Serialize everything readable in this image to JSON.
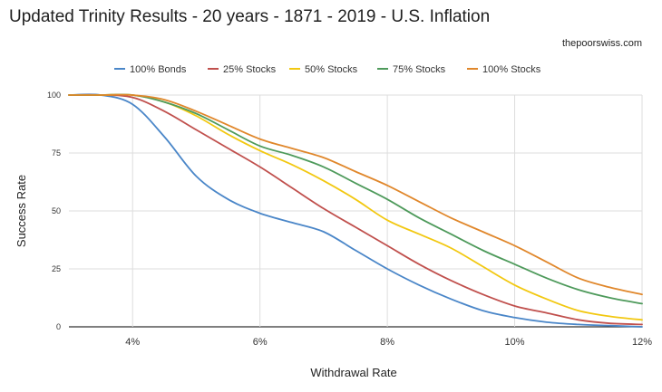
{
  "chart_data": {
    "type": "line",
    "title": "Updated Trinity Results - 20 years - 1871 - 2019 - U.S. Inflation",
    "subtitle": "thepoorswiss.com",
    "xlabel": "Withdrawal Rate",
    "ylabel": "Success Rate",
    "x": [
      3.0,
      3.5,
      4.0,
      4.5,
      5.0,
      5.5,
      6.0,
      6.5,
      7.0,
      7.5,
      8.0,
      8.5,
      9.0,
      9.5,
      10.0,
      10.5,
      11.0,
      11.5,
      12.0
    ],
    "xlim": [
      3,
      12
    ],
    "ylim": [
      0,
      100
    ],
    "x_ticks": [
      4,
      6,
      8,
      10,
      12
    ],
    "x_tick_labels": [
      "4%",
      "6%",
      "8%",
      "10%",
      "12%"
    ],
    "y_ticks": [
      0,
      25,
      50,
      75,
      100
    ],
    "y_tick_labels": [
      "0",
      "25",
      "50",
      "75",
      "100"
    ],
    "grid": true,
    "legend_position": "top",
    "series": [
      {
        "name": "100% Bonds",
        "color": "#4a86c8",
        "values": [
          100,
          100,
          96,
          82,
          65,
          55,
          49,
          45,
          41,
          33,
          25,
          18,
          12,
          7,
          4,
          2,
          1,
          0.5,
          0
        ]
      },
      {
        "name": "25% Stocks",
        "color": "#c0504d",
        "values": [
          100,
          100,
          99,
          93,
          85,
          77,
          69,
          60,
          51,
          43,
          35,
          27,
          20,
          14,
          9,
          6,
          3,
          1.5,
          1
        ]
      },
      {
        "name": "50% Stocks",
        "color": "#f2c811",
        "values": [
          100,
          100,
          100,
          97,
          91,
          83,
          76,
          70,
          63,
          55,
          46,
          40,
          34,
          26,
          18,
          12,
          7,
          4.5,
          3
        ]
      },
      {
        "name": "75% Stocks",
        "color": "#4e9a5b",
        "values": [
          100,
          100,
          100,
          97,
          92,
          85,
          78,
          74,
          69,
          62,
          55,
          47,
          40,
          33,
          27,
          21,
          16,
          12.5,
          10
        ]
      },
      {
        "name": "100% Stocks",
        "color": "#e0872b",
        "values": [
          100,
          100,
          100,
          98,
          93,
          87,
          81,
          77,
          73,
          67,
          61,
          54,
          47,
          41,
          35,
          28,
          21,
          17,
          14
        ]
      }
    ]
  }
}
